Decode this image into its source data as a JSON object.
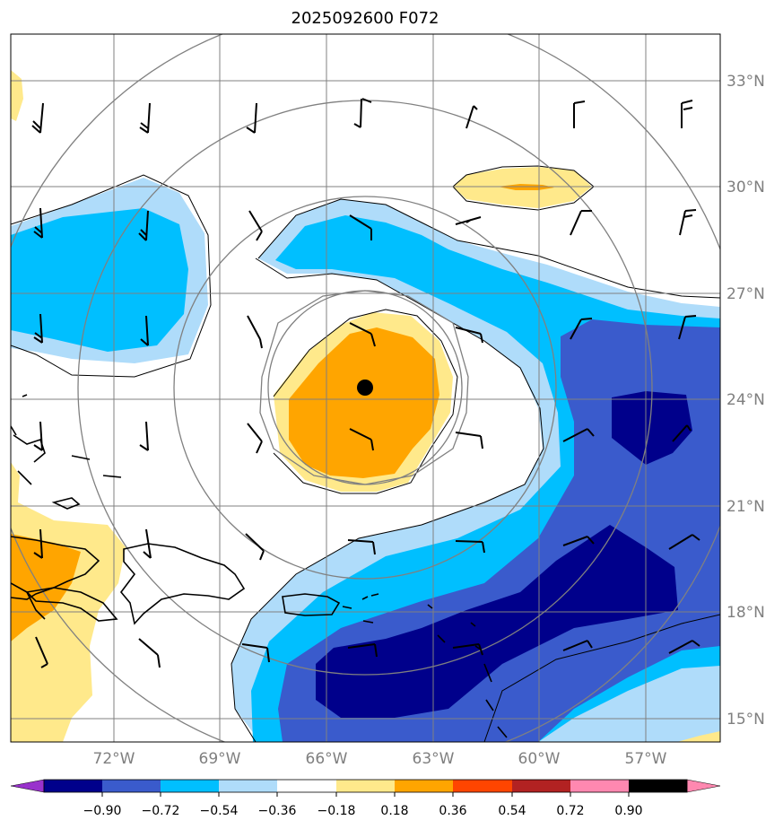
{
  "title": "2025092600 F072",
  "lat_labels": [
    "33°N",
    "30°N",
    "27°N",
    "24°N",
    "21°N",
    "18°N",
    "15°N"
  ],
  "lon_labels": [
    "72°W",
    "69°W",
    "66°W",
    "63°W",
    "60°W",
    "57°W"
  ],
  "colorbar": {
    "ticks": [
      "−0.90",
      "−0.72",
      "−0.54",
      "−0.36",
      "−0.18",
      "0.18",
      "0.36",
      "0.54",
      "0.72",
      "0.90"
    ],
    "colors": [
      "#9932cc",
      "#00008b",
      "#3a5bcc",
      "#00bfff",
      "#afdcfa",
      "#ffffff",
      "#ffe98b",
      "#ffa500",
      "#ff4500",
      "#b22222",
      "#ff88b0"
    ]
  },
  "storm_center": {
    "lat": 24.3,
    "lon": -64.9
  },
  "map_colors": {
    "grid": "#808080",
    "coast": "#000000",
    "marker": "#000000"
  }
}
